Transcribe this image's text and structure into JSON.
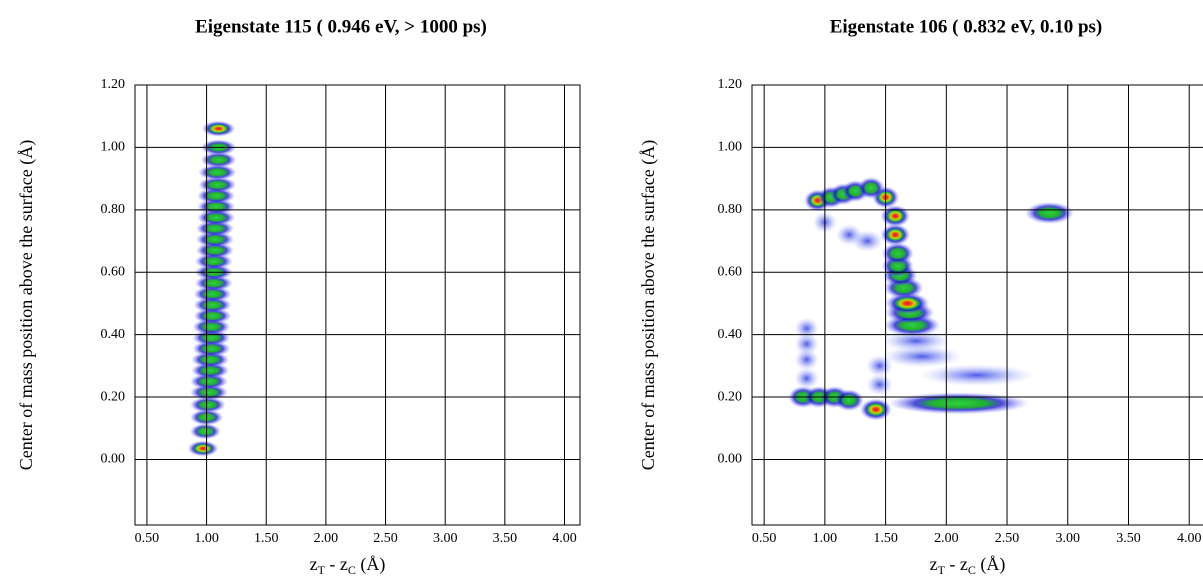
{
  "chart_data": [
    {
      "type": "density",
      "title": "Eigenstate 115  ( 0.946 eV,  > 1000 ps)",
      "x_label": [
        "z",
        "T",
        " - z",
        "C",
        " (Å)"
      ],
      "y_label": "Center of mass position above the surface (Å)",
      "xlim": [
        0.4,
        4.13
      ],
      "ylim": [
        -0.21,
        1.2
      ],
      "xticks": [
        {
          "value": 0.5,
          "label": "0.50"
        },
        {
          "value": 1,
          "label": "1.00"
        },
        {
          "value": 1.5,
          "label": "1.50"
        },
        {
          "value": 2,
          "label": "2.00"
        },
        {
          "value": 2.5,
          "label": "2.50"
        },
        {
          "value": 3,
          "label": "3.00"
        },
        {
          "value": 3.5,
          "label": "3.50"
        },
        {
          "value": 4,
          "label": "4.00"
        }
      ],
      "yticks": [
        {
          "value": 0,
          "label": "0.00"
        },
        {
          "value": 0.2,
          "label": "0.20"
        },
        {
          "value": 0.4,
          "label": "0.40"
        },
        {
          "value": 0.6,
          "label": "0.60"
        },
        {
          "value": 0.8,
          "label": "0.80"
        },
        {
          "value": 1,
          "label": "1.00"
        },
        {
          "value": 1.2,
          "label": "1.20"
        }
      ],
      "grid": true,
      "peaks": {
        "x": [
          0.97,
          0.99,
          1.0,
          1.01,
          1.02,
          1.02,
          1.03,
          1.03,
          1.04,
          1.04,
          1.04,
          1.05,
          1.05,
          1.05,
          1.06,
          1.06,
          1.06,
          1.07,
          1.07,
          1.07,
          1.08,
          1.08,
          1.08,
          1.09,
          1.09,
          1.1,
          1.1,
          1.1
        ],
        "y": [
          0.035,
          0.09,
          0.135,
          0.175,
          0.215,
          0.25,
          0.285,
          0.32,
          0.355,
          0.39,
          0.425,
          0.46,
          0.495,
          0.53,
          0.565,
          0.6,
          0.635,
          0.67,
          0.705,
          0.74,
          0.775,
          0.81,
          0.845,
          0.88,
          0.92,
          0.96,
          1.0,
          1.06
        ],
        "z": [
          1,
          0.6,
          0.6,
          0.6,
          0.6,
          0.6,
          0.6,
          0.6,
          0.6,
          0.6,
          0.6,
          0.6,
          0.6,
          0.6,
          0.6,
          0.6,
          0.6,
          0.6,
          0.6,
          0.6,
          0.6,
          0.6,
          0.6,
          0.6,
          0.6,
          0.6,
          0.6,
          1
        ],
        "w": [
          0.07,
          0.07,
          0.08,
          0.09,
          0.1,
          0.1,
          0.1,
          0.1,
          0.1,
          0.1,
          0.1,
          0.1,
          0.1,
          0.1,
          0.1,
          0.1,
          0.1,
          0.1,
          0.1,
          0.1,
          0.1,
          0.1,
          0.1,
          0.1,
          0.1,
          0.09,
          0.09,
          0.08
        ]
      }
    },
    {
      "type": "density",
      "title": "Eigenstate 106  ( 0.832 eV,  0.10 ps)",
      "x_label": [
        "z",
        "T",
        " - z",
        "C",
        " (Å)"
      ],
      "y_label": "Center of mass position above the surface (Å)",
      "xlim": [
        0.4,
        4.13
      ],
      "ylim": [
        -0.21,
        1.2
      ],
      "xticks": [
        {
          "value": 0.5,
          "label": "0.50"
        },
        {
          "value": 1,
          "label": "1.00"
        },
        {
          "value": 1.5,
          "label": "1.50"
        },
        {
          "value": 2,
          "label": "2.00"
        },
        {
          "value": 2.5,
          "label": "2.50"
        },
        {
          "value": 3,
          "label": "3.00"
        },
        {
          "value": 3.5,
          "label": "3.50"
        },
        {
          "value": 4,
          "label": "4.00"
        }
      ],
      "yticks": [
        {
          "value": 0,
          "label": "0.00"
        },
        {
          "value": 0.2,
          "label": "0.20"
        },
        {
          "value": 0.4,
          "label": "0.40"
        },
        {
          "value": 0.6,
          "label": "0.60"
        },
        {
          "value": 0.8,
          "label": "0.80"
        },
        {
          "value": 1,
          "label": "1.00"
        },
        {
          "value": 1.2,
          "label": "1.20"
        }
      ],
      "grid": true,
      "peaks": {
        "x": [
          0.82,
          0.95,
          1.08,
          1.2,
          1.42,
          2.1,
          2.25,
          1.8,
          1.75,
          1.72,
          1.7,
          1.68,
          1.65,
          1.62,
          1.6,
          1.6,
          1.58,
          1.58,
          1.5,
          2.85,
          0.85,
          0.85,
          0.85,
          0.85,
          0.94,
          1.05,
          1.15,
          1.25,
          1.38,
          1.0,
          1.2,
          1.35,
          1.45,
          1.45
        ],
        "y": [
          0.2,
          0.2,
          0.2,
          0.19,
          0.16,
          0.18,
          0.27,
          0.33,
          0.38,
          0.43,
          0.47,
          0.5,
          0.55,
          0.59,
          0.62,
          0.66,
          0.72,
          0.78,
          0.84,
          0.79,
          0.26,
          0.32,
          0.37,
          0.42,
          0.83,
          0.84,
          0.85,
          0.86,
          0.87,
          0.76,
          0.72,
          0.7,
          0.24,
          0.3
        ],
        "z": [
          0.6,
          0.6,
          0.6,
          0.6,
          1,
          0.6,
          0.5,
          0.5,
          0.5,
          0.6,
          0.8,
          0.9,
          0.8,
          0.8,
          0.8,
          0.8,
          0.9,
          0.9,
          1,
          0.6,
          0.5,
          0.5,
          0.5,
          0.4,
          1,
          0.6,
          0.6,
          0.6,
          0.6,
          0.4,
          0.4,
          0.5,
          0.5,
          0.4
        ],
        "w": [
          0.04,
          0.04,
          0.04,
          0.04,
          0.05,
          0.5,
          0.4,
          0.25,
          0.2,
          0.15,
          0.12,
          0.1,
          0.08,
          0.06,
          0.05,
          0.05,
          0.04,
          0.04,
          0.03,
          0.12,
          0.02,
          0.02,
          0.02,
          0.02,
          0.03,
          0.03,
          0.03,
          0.03,
          0.03,
          0.02,
          0.03,
          0.05,
          0.03,
          0.03
        ]
      }
    }
  ]
}
